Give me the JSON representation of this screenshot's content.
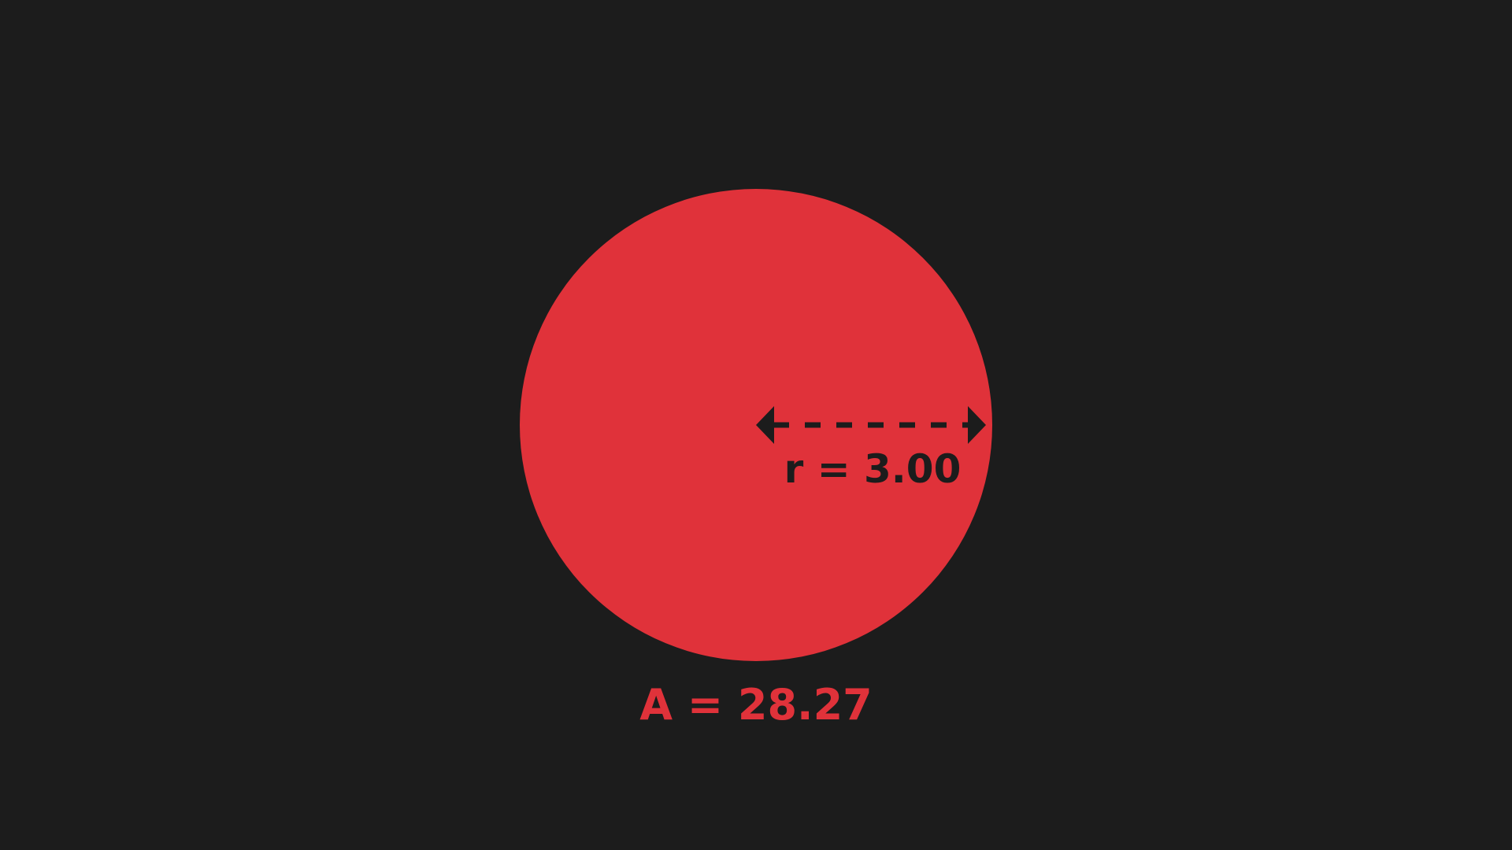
{
  "colors": {
    "background": "#1c1c1c",
    "circle_fill": "#e0323a",
    "annotation_dark": "#1c1c1c",
    "area_text": "#e0323a"
  },
  "circle": {
    "radius_label": "r = 3.00",
    "area_label": "A = 28.27"
  },
  "icons": {
    "arrow_left": "arrowhead-left-icon",
    "arrow_right": "arrowhead-right-icon"
  }
}
